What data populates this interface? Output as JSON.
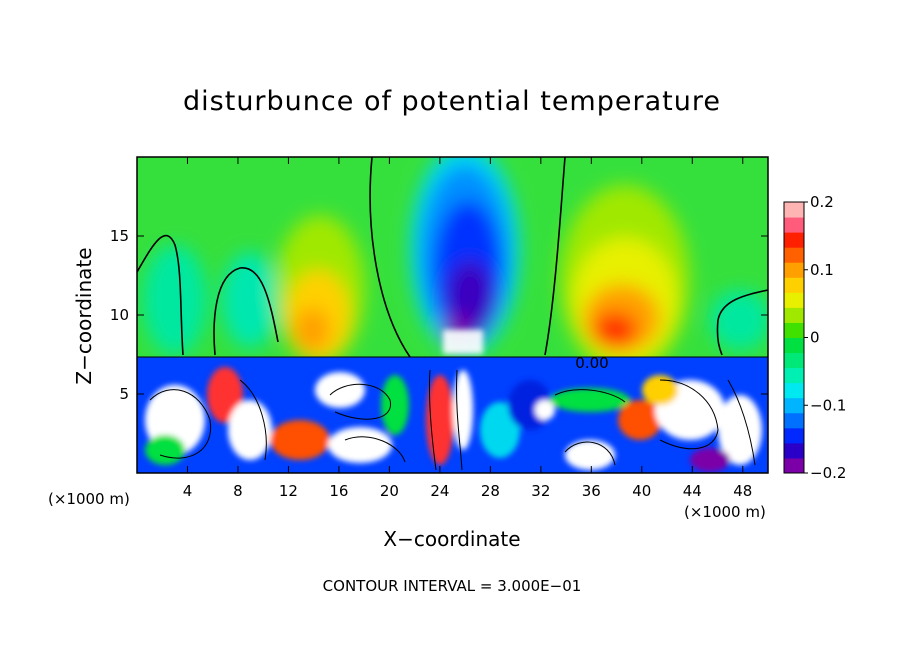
{
  "chart_data": {
    "type": "heatmap",
    "title": "disturbunce of potential temperature",
    "xlabel": "X−coordinate",
    "ylabel": "Z−coordinate",
    "x_unit_label": "(×1000 m)",
    "x_ticks": [
      "4",
      "8",
      "12",
      "16",
      "20",
      "24",
      "28",
      "32",
      "36",
      "40",
      "44",
      "48"
    ],
    "y_ticks": [
      "5",
      "10",
      "15"
    ],
    "xlim": [
      0,
      50
    ],
    "ylim": [
      0,
      20
    ],
    "colorbar": {
      "ticks": [
        "0.2",
        "0.1",
        "0",
        "−0.1",
        "−0.2"
      ],
      "range": [
        -0.2,
        0.2
      ],
      "colors": [
        "#7b00a8",
        "#2a00c8",
        "#0028ff",
        "#0070ff",
        "#00b4ff",
        "#00e8f0",
        "#00f0b4",
        "#00e878",
        "#00e040",
        "#40e000",
        "#a0e800",
        "#e8f000",
        "#ffd000",
        "#ffa000",
        "#ff6000",
        "#ff2000",
        "#ff5c7c",
        "#ffb4b4"
      ]
    },
    "contour_labels": [
      "0.00"
    ],
    "footnote": "CONTOUR INTERVAL = 3.000E−01"
  }
}
